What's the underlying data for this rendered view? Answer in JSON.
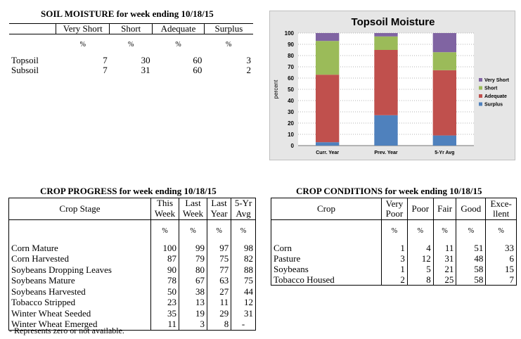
{
  "soil": {
    "title": "SOIL MOISTURE for week ending 10/18/15",
    "headers": [
      "Very Short",
      "Short",
      "Adequate",
      "Surplus"
    ],
    "pct": "%",
    "rows": [
      {
        "label": "Topsoil",
        "values": [
          "7",
          "30",
          "60",
          "3"
        ]
      },
      {
        "label": "Subsoil",
        "values": [
          "7",
          "31",
          "60",
          "2"
        ]
      }
    ]
  },
  "chart_data": {
    "type": "bar",
    "stacked": true,
    "title": "Topsoil Moisture",
    "ylabel": "percent",
    "xlabel": "",
    "ylim": [
      0,
      100
    ],
    "yticks": [
      0,
      10,
      20,
      30,
      40,
      50,
      60,
      70,
      80,
      90,
      100
    ],
    "categories": [
      "Curr. Year",
      "Prev. Year",
      "5-Yr Avg"
    ],
    "series": [
      {
        "name": "Surplus",
        "color": "#4f81bd",
        "values": [
          3,
          27,
          9
        ]
      },
      {
        "name": "Adequate",
        "color": "#c0504d",
        "values": [
          60,
          58,
          58
        ]
      },
      {
        "name": "Short",
        "color": "#9bbb59",
        "values": [
          30,
          12,
          16
        ]
      },
      {
        "name": "Very Short",
        "color": "#8064a2",
        "values": [
          7,
          3,
          17
        ]
      }
    ],
    "legend_order": [
      "Very Short",
      "Short",
      "Adequate",
      "Surplus"
    ],
    "legend": "right",
    "grid": true
  },
  "progress": {
    "title": "CROP PROGRESS for week ending 10/18/15",
    "stage_header": "Crop Stage",
    "col_headers": [
      [
        "This",
        "Week"
      ],
      [
        "Last",
        "Week"
      ],
      [
        "Last",
        "Year"
      ],
      [
        "5-Yr",
        "Avg"
      ]
    ],
    "pct": "%",
    "rows": [
      {
        "label": "Corn Mature",
        "values": [
          "100",
          "99",
          "97",
          "98"
        ]
      },
      {
        "label": "Corn Harvested",
        "values": [
          "87",
          "79",
          "75",
          "82"
        ]
      },
      {
        "label": "Soybeans Dropping Leaves",
        "values": [
          "90",
          "80",
          "77",
          "88"
        ]
      },
      {
        "label": "Soybeans Mature",
        "values": [
          "78",
          "67",
          "63",
          "75"
        ]
      },
      {
        "label": "Soybeans Harvested",
        "values": [
          "50",
          "38",
          "27",
          "44"
        ]
      },
      {
        "label": "Tobacco Stripped",
        "values": [
          "23",
          "13",
          "11",
          "12"
        ]
      },
      {
        "label": "Winter Wheat Seeded",
        "values": [
          "35",
          "19",
          "29",
          "31"
        ]
      },
      {
        "label": "Winter Wheat Emerged",
        "values": [
          "11",
          "3",
          "8",
          "-"
        ]
      }
    ],
    "footnote": "- Represents zero or not available."
  },
  "conditions": {
    "title": "CROP CONDITIONS for week ending 10/18/15",
    "crop_header": "Crop",
    "col_headers": [
      [
        "Very",
        "Poor"
      ],
      [
        "Poor"
      ],
      [
        "Fair"
      ],
      [
        "Good"
      ],
      [
        "Exce-",
        "llent"
      ]
    ],
    "pct": "%",
    "rows": [
      {
        "label": "Corn",
        "values": [
          "1",
          "4",
          "11",
          "51",
          "33"
        ]
      },
      {
        "label": "Pasture",
        "values": [
          "3",
          "12",
          "31",
          "48",
          "6"
        ]
      },
      {
        "label": "Soybeans",
        "values": [
          "1",
          "5",
          "21",
          "58",
          "15"
        ]
      },
      {
        "label": "Tobacco Housed",
        "values": [
          "2",
          "8",
          "25",
          "58",
          "7"
        ]
      }
    ]
  }
}
